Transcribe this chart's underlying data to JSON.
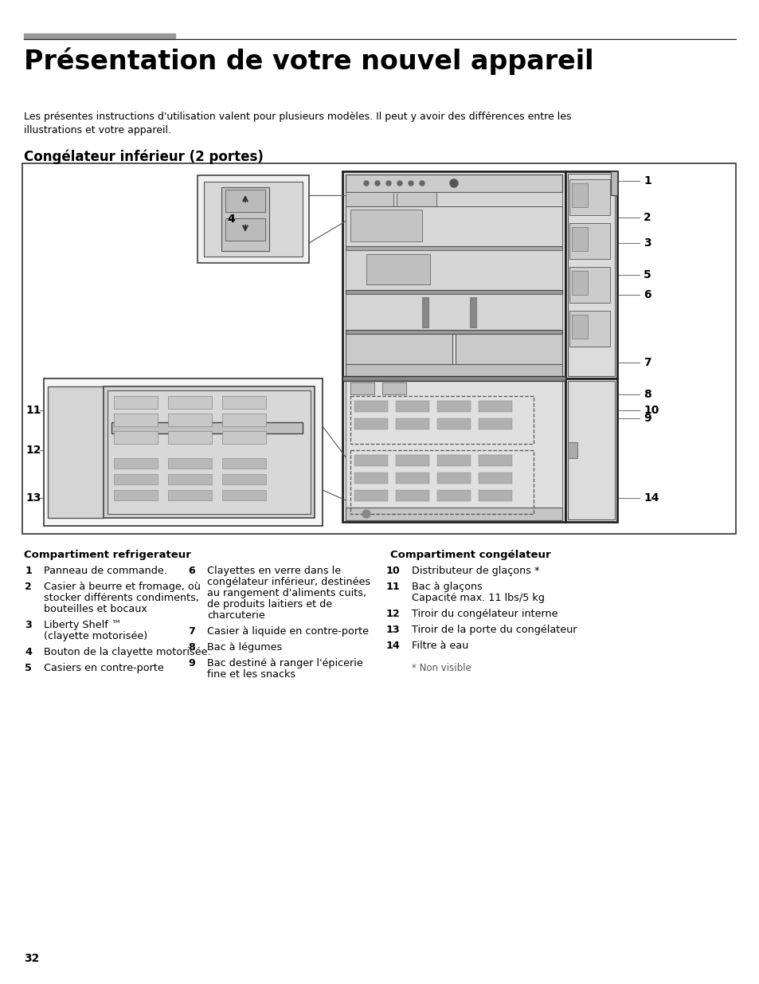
{
  "page_bg": "#ffffff",
  "title": "Présentation de votre nouvel appareil",
  "subtitle_line1": "Les présentes instructions d'utilisation valent pour plusieurs modèles. Il peut y avoir des différences entre les",
  "subtitle_line2": "illustrations et votre appareil.",
  "section_title": "Congélateur inférieur (2 portes)",
  "col1_header": "Compartiment refrigerateur",
  "col3_header": "Compartiment congélateur",
  "col1_items": [
    [
      "1",
      "Panneau de commande."
    ],
    [
      "2",
      "Casier à beurre et fromage, où\n    stocker différents condiments,\n    bouteilles et bocaux"
    ],
    [
      "3",
      "Liberty Shelf ™\n    (clayette motorisée)"
    ],
    [
      "4",
      "Bouton de la clayette motorisée."
    ],
    [
      "5",
      "Casiers en contre-porte"
    ]
  ],
  "col2_items": [
    [
      "6",
      "Clayettes en verre dans le\n    congélateur inférieur, destinées\n    au rangement d'aliments cuits,\n    de produits laitiers et de\n    charcuterie"
    ],
    [
      "7",
      "Casier à liquide en contre-porte"
    ],
    [
      "8",
      "Bac à légumes"
    ],
    [
      "9",
      "Bac destiné à ranger l'épicerie\n    fine et les snacks"
    ]
  ],
  "col3_items": [
    [
      "10",
      "Distributeur de glaçons *"
    ],
    [
      "11",
      "Bac à glaçons\n     Capacité max. 11 lbs/5 kg"
    ],
    [
      "12",
      "Tiroir du congélateur interne"
    ],
    [
      "13",
      "Tiroir de la porte du congélateur"
    ],
    [
      "14",
      "Filtre à eau"
    ]
  ],
  "footnote": "* Non visible",
  "page_number": "32"
}
